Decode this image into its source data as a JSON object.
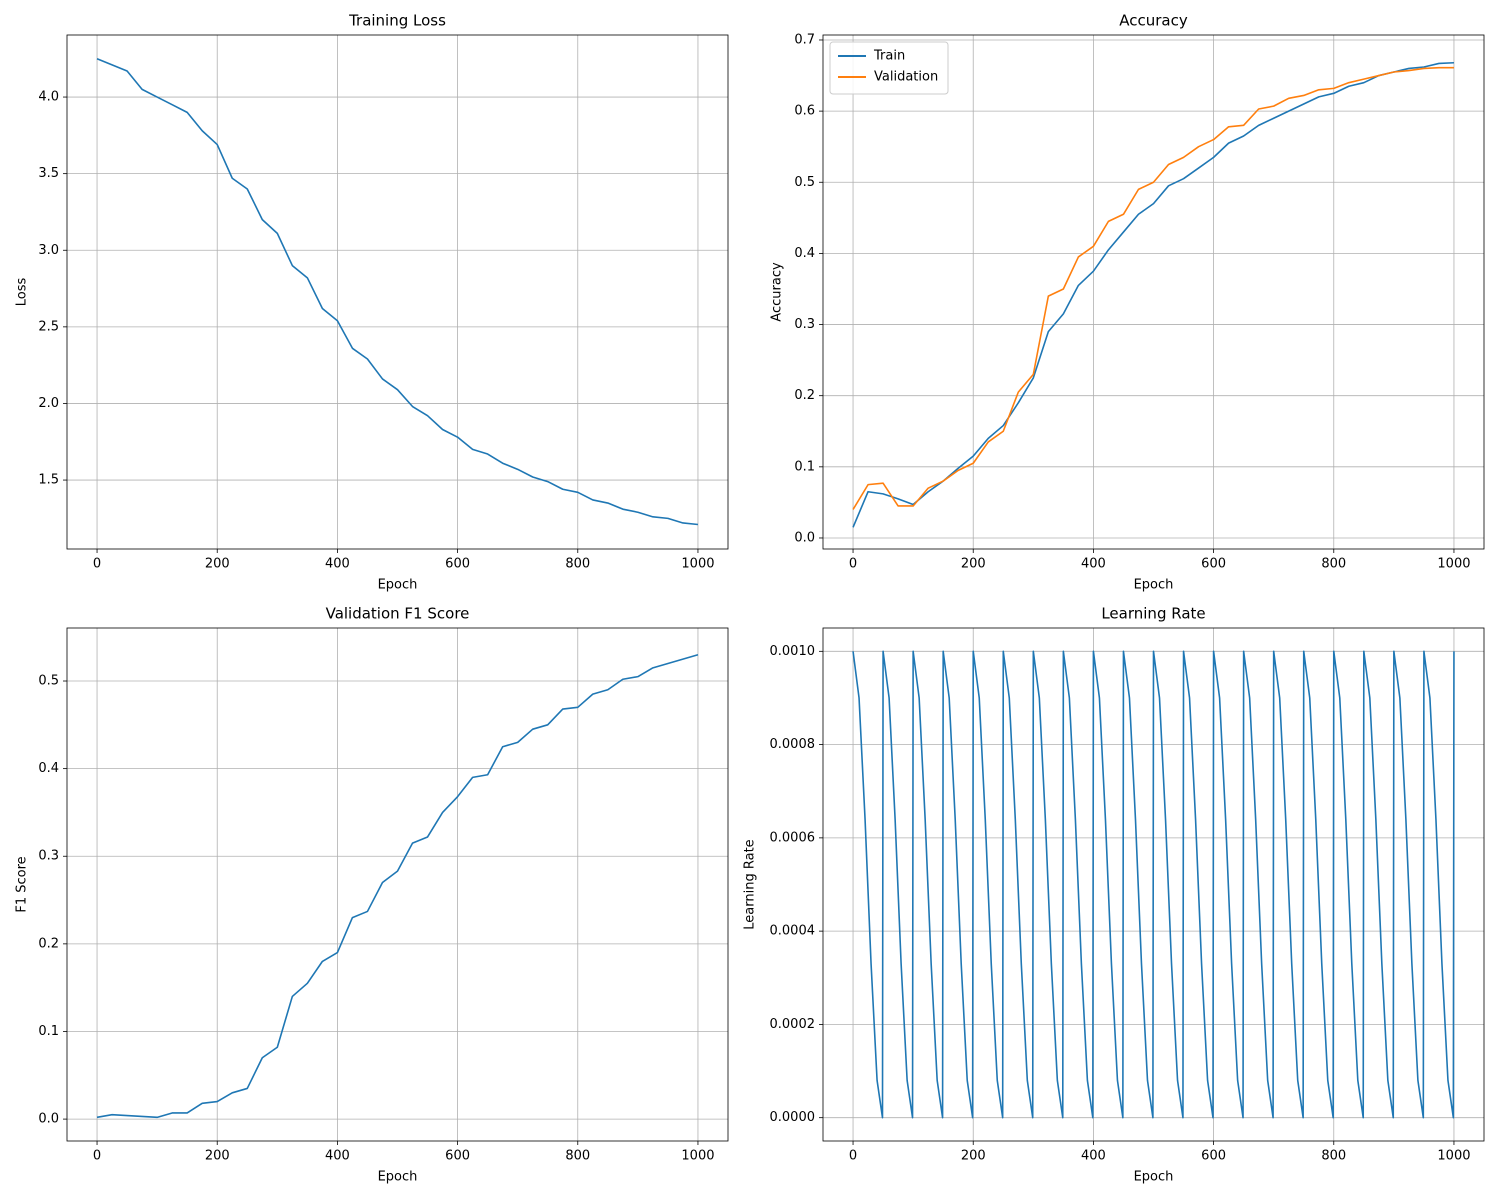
{
  "chart_data": [
    {
      "type": "line",
      "title": "Training Loss",
      "x_label": "Epoch",
      "y_label": "Loss",
      "grid": true,
      "x": [
        0,
        25,
        50,
        75,
        100,
        125,
        150,
        175,
        200,
        225,
        250,
        275,
        300,
        325,
        350,
        375,
        400,
        425,
        450,
        475,
        500,
        525,
        550,
        575,
        600,
        625,
        650,
        675,
        700,
        725,
        750,
        775,
        800,
        825,
        850,
        875,
        900,
        925,
        950,
        975,
        1000
      ],
      "series": [
        {
          "name": "Loss",
          "color": "#1f77b4",
          "values": [
            4.25,
            4.21,
            4.17,
            4.05,
            4.0,
            3.95,
            3.9,
            3.78,
            3.69,
            3.47,
            3.4,
            3.2,
            3.11,
            2.9,
            2.82,
            2.62,
            2.54,
            2.36,
            2.29,
            2.16,
            2.09,
            1.98,
            1.92,
            1.83,
            1.78,
            1.7,
            1.67,
            1.61,
            1.57,
            1.52,
            1.49,
            1.44,
            1.42,
            1.37,
            1.35,
            1.31,
            1.29,
            1.26,
            1.25,
            1.22,
            1.21
          ]
        }
      ],
      "xlim": [
        -50,
        1050
      ],
      "xticks": [
        0,
        200,
        400,
        600,
        800,
        1000
      ],
      "ylim": [
        1.05,
        4.405
      ],
      "yticks": [
        1.5,
        {
          "value": 2,
          "label": "2.0"
        },
        2.5,
        {
          "value": 3,
          "label": "3.0"
        },
        3.5,
        {
          "value": 4,
          "label": "4.0"
        }
      ]
    },
    {
      "type": "line",
      "title": "Accuracy",
      "x_label": "Epoch",
      "y_label": "Accuracy",
      "grid": true,
      "legend": "upper left",
      "x": [
        0,
        25,
        50,
        75,
        100,
        125,
        150,
        175,
        200,
        225,
        250,
        275,
        300,
        325,
        350,
        375,
        400,
        425,
        450,
        475,
        500,
        525,
        550,
        575,
        600,
        625,
        650,
        675,
        700,
        725,
        750,
        775,
        800,
        825,
        850,
        875,
        900,
        925,
        950,
        975,
        1000
      ],
      "series": [
        {
          "name": "Train",
          "color": "#1f77b4",
          "values": [
            0.015,
            0.065,
            0.062,
            0.055,
            0.047,
            0.065,
            0.08,
            0.098,
            0.115,
            0.14,
            0.158,
            0.19,
            0.225,
            0.29,
            0.315,
            0.355,
            0.375,
            0.405,
            0.43,
            0.455,
            0.47,
            0.495,
            0.505,
            0.52,
            0.535,
            0.555,
            0.565,
            0.58,
            0.59,
            0.6,
            0.61,
            0.62,
            0.625,
            0.635,
            0.64,
            0.65,
            0.655,
            0.66,
            0.662,
            0.667,
            0.668
          ]
        },
        {
          "name": "Validation",
          "color": "#ff7f0e",
          "values": [
            0.04,
            0.075,
            0.077,
            0.045,
            0.045,
            0.07,
            0.08,
            0.095,
            0.105,
            0.135,
            0.15,
            0.205,
            0.23,
            0.34,
            0.35,
            0.395,
            0.41,
            0.445,
            0.455,
            0.49,
            0.5,
            0.525,
            0.535,
            0.55,
            0.56,
            0.578,
            0.58,
            0.603,
            0.607,
            0.618,
            0.622,
            0.63,
            0.632,
            0.64,
            0.645,
            0.65,
            0.655,
            0.657,
            0.66,
            0.661,
            0.661
          ]
        }
      ],
      "xlim": [
        -50,
        1050
      ],
      "xticks": [
        0,
        200,
        400,
        600,
        800,
        1000
      ],
      "ylim": [
        -0.0155,
        0.707
      ],
      "yticks": [
        {
          "value": 0,
          "label": "0.0"
        },
        0.1,
        0.2,
        0.3,
        0.4,
        0.5,
        0.6,
        0.7
      ]
    },
    {
      "type": "line",
      "title": "Validation F1 Score",
      "x_label": "Epoch",
      "y_label": "F1 Score",
      "grid": true,
      "x": [
        0,
        25,
        50,
        75,
        100,
        125,
        150,
        175,
        200,
        225,
        250,
        275,
        300,
        325,
        350,
        375,
        400,
        425,
        450,
        475,
        500,
        525,
        550,
        575,
        600,
        625,
        650,
        675,
        700,
        725,
        750,
        775,
        800,
        825,
        850,
        875,
        900,
        925,
        950,
        975,
        1000
      ],
      "series": [
        {
          "name": "F1 Score",
          "color": "#1f77b4",
          "values": [
            0.002,
            0.005,
            0.004,
            0.003,
            0.002,
            0.007,
            0.007,
            0.018,
            0.02,
            0.03,
            0.035,
            0.07,
            0.082,
            0.14,
            0.155,
            0.18,
            0.19,
            0.23,
            0.237,
            0.27,
            0.283,
            0.315,
            0.322,
            0.35,
            0.368,
            0.39,
            0.393,
            0.425,
            0.43,
            0.445,
            0.45,
            0.468,
            0.47,
            0.485,
            0.49,
            0.502,
            0.505,
            0.515,
            0.52,
            0.525,
            0.53
          ]
        }
      ],
      "xlim": [
        -50,
        1050
      ],
      "xticks": [
        0,
        200,
        400,
        600,
        800,
        1000
      ],
      "ylim": [
        -0.025,
        0.5605
      ],
      "yticks": [
        {
          "value": 0,
          "label": "0.0"
        },
        0.1,
        0.2,
        0.3,
        0.4,
        0.5
      ]
    },
    {
      "type": "line",
      "title": "Learning Rate",
      "x_label": "Epoch",
      "y_label": "Learning Rate",
      "grid": true,
      "x": [
        0,
        10,
        20,
        30,
        40,
        49,
        50,
        60,
        70,
        80,
        90,
        99,
        100,
        110,
        120,
        130,
        140,
        149,
        150,
        160,
        170,
        180,
        190,
        199,
        200,
        210,
        220,
        230,
        240,
        249,
        250,
        260,
        270,
        280,
        290,
        299,
        300,
        310,
        320,
        330,
        340,
        349,
        350,
        360,
        370,
        380,
        390,
        399,
        400,
        410,
        420,
        430,
        440,
        449,
        450,
        460,
        470,
        480,
        490,
        499,
        500,
        510,
        520,
        530,
        540,
        549,
        550,
        560,
        570,
        580,
        590,
        599,
        600,
        610,
        620,
        630,
        640,
        649,
        650,
        660,
        670,
        680,
        690,
        699,
        700,
        710,
        720,
        730,
        740,
        749,
        750,
        760,
        770,
        780,
        790,
        799,
        800,
        810,
        820,
        830,
        840,
        849,
        850,
        860,
        870,
        880,
        890,
        899,
        900,
        910,
        920,
        930,
        940,
        949,
        950,
        960,
        970,
        980,
        990,
        999,
        1000
      ],
      "series": [
        {
          "name": "Learning Rate",
          "color": "#1f77b4",
          "values": [
            0.001,
            0.0009,
            0.00064,
            0.00033,
            8e-05,
            0,
            0.001,
            0.0009,
            0.00064,
            0.00033,
            8e-05,
            0,
            0.001,
            0.0009,
            0.00064,
            0.00033,
            8e-05,
            0,
            0.001,
            0.0009,
            0.00064,
            0.00033,
            8e-05,
            0,
            0.001,
            0.0009,
            0.00064,
            0.00033,
            8e-05,
            0,
            0.001,
            0.0009,
            0.00064,
            0.00033,
            8e-05,
            0,
            0.001,
            0.0009,
            0.00064,
            0.00033,
            8e-05,
            0,
            0.001,
            0.0009,
            0.00064,
            0.00033,
            8e-05,
            0,
            0.001,
            0.0009,
            0.00064,
            0.00033,
            8e-05,
            0,
            0.001,
            0.0009,
            0.00064,
            0.00033,
            8e-05,
            0,
            0.001,
            0.0009,
            0.00064,
            0.00033,
            8e-05,
            0,
            0.001,
            0.0009,
            0.00064,
            0.00033,
            8e-05,
            0,
            0.001,
            0.0009,
            0.00064,
            0.00033,
            8e-05,
            0,
            0.001,
            0.0009,
            0.00064,
            0.00033,
            8e-05,
            0,
            0.001,
            0.0009,
            0.00064,
            0.00033,
            8e-05,
            0,
            0.001,
            0.0009,
            0.00064,
            0.00033,
            8e-05,
            0,
            0.001,
            0.0009,
            0.00064,
            0.00033,
            8e-05,
            0,
            0.001,
            0.0009,
            0.00064,
            0.00033,
            8e-05,
            0,
            0.001,
            0.0009,
            0.00064,
            0.00033,
            8e-05,
            0,
            0.001,
            0.0009,
            0.00064,
            0.00033,
            8e-05,
            0,
            0.001
          ]
        }
      ],
      "xlim": [
        -50,
        1050
      ],
      "xticks": [
        0,
        200,
        400,
        600,
        800,
        1000
      ],
      "ylim": [
        -5e-05,
        0.00105
      ],
      "yticks": [
        {
          "value": 0,
          "label": "0.0000"
        },
        {
          "value": 0.0002,
          "label": "0.0002"
        },
        {
          "value": 0.0004,
          "label": "0.0004"
        },
        {
          "value": 0.0006,
          "label": "0.0006"
        },
        {
          "value": 0.0008,
          "label": "0.0008"
        },
        {
          "value": 0.001,
          "label": "0.0010"
        }
      ]
    }
  ]
}
